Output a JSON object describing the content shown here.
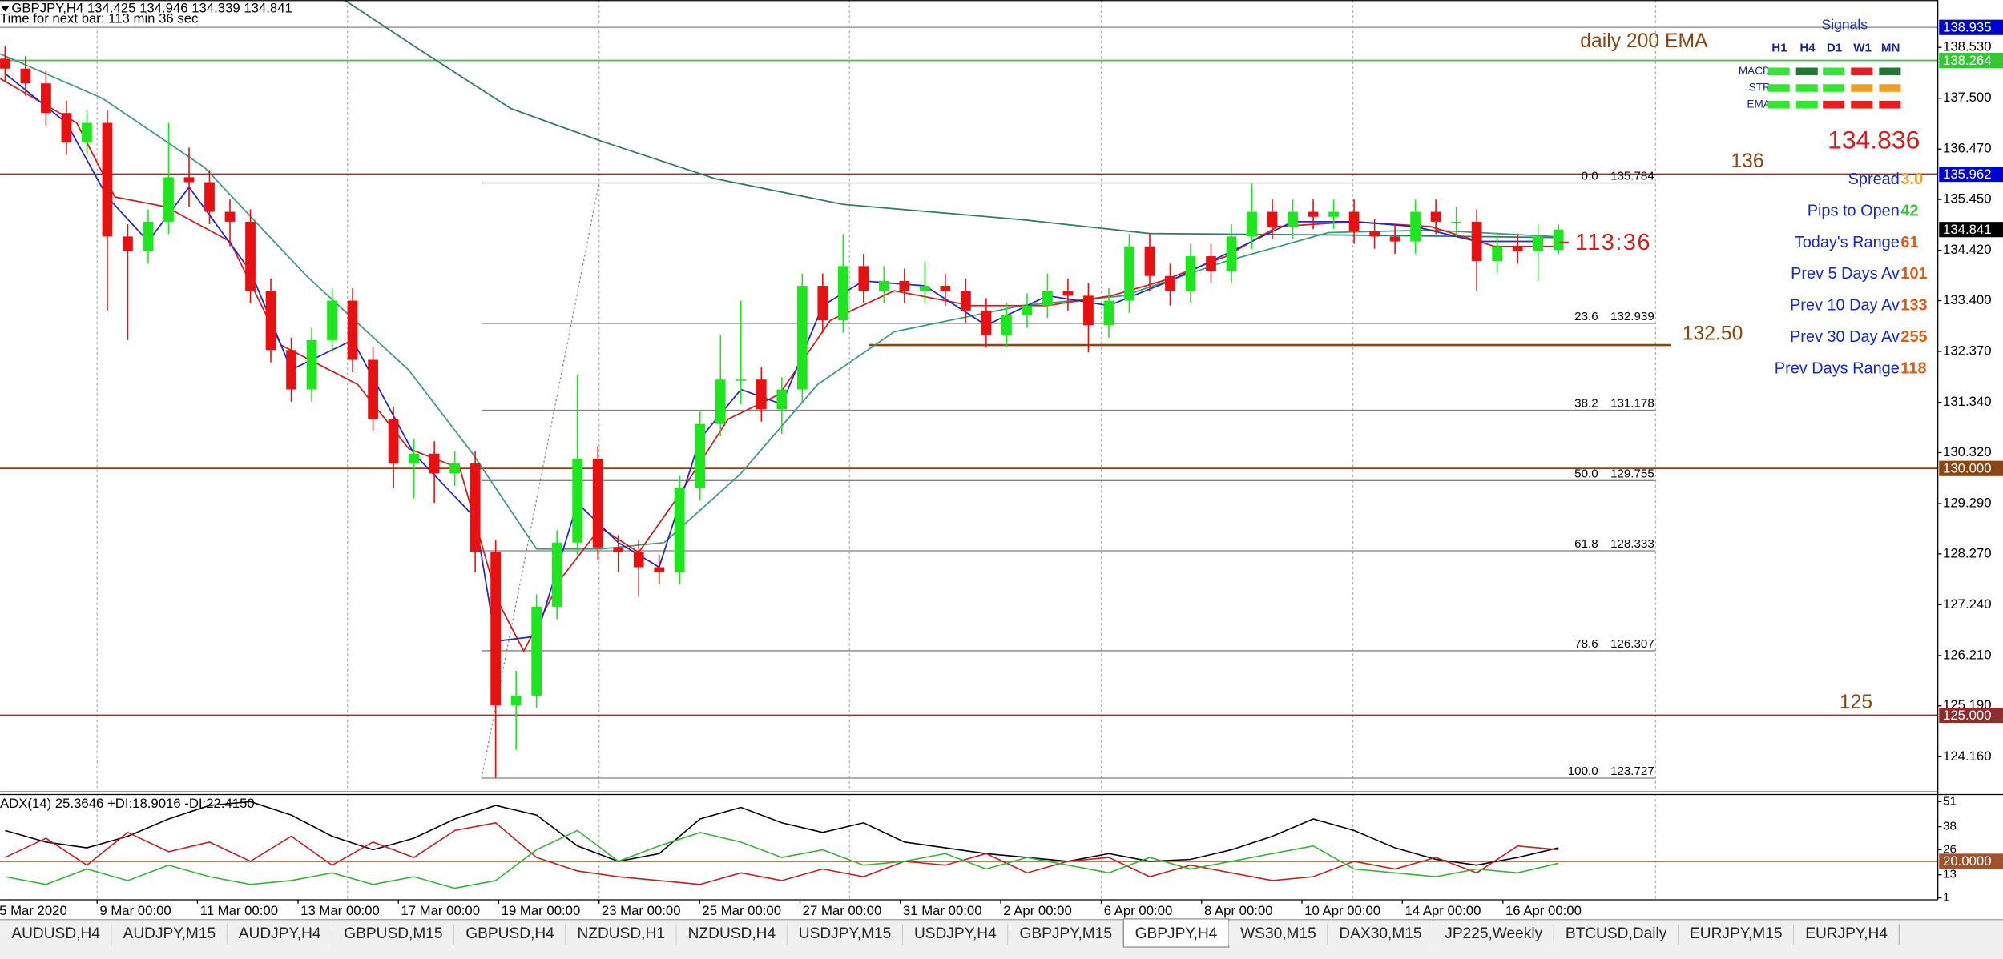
{
  "chart_data": {
    "type": "candlestick",
    "header": "GBPJPY,H4  134.425 134.946 134.339 134.841",
    "timer_text": "Time for next bar: 113 min 36 sec",
    "up_color": "#1ee61e",
    "down_color": "#e81010",
    "categories": [
      null,
      null,
      null,
      null,
      null,
      null,
      null,
      null,
      null,
      null,
      null,
      null,
      null,
      null,
      null,
      null,
      null,
      null,
      null,
      null,
      null,
      null,
      null,
      null,
      null,
      null,
      null,
      null,
      null,
      null,
      null,
      null,
      null,
      null,
      null,
      null,
      null,
      null,
      null,
      null,
      null,
      null,
      null,
      null,
      null,
      null,
      null,
      null,
      null,
      null,
      null,
      null,
      null,
      null,
      null,
      null,
      null,
      null,
      null,
      null,
      null,
      null,
      null,
      null,
      null,
      null,
      null,
      null,
      null,
      null,
      null,
      null,
      null,
      null,
      null,
      null,
      null
    ],
    "open": [
      138.3,
      138.1,
      137.8,
      137.2,
      136.6,
      137.0,
      134.7,
      134.4,
      135.0,
      135.9,
      135.8,
      135.2,
      135.0,
      133.6,
      132.4,
      131.6,
      132.6,
      133.4,
      132.2,
      131.0,
      130.1,
      130.3,
      129.9,
      130.1,
      128.3,
      125.2,
      125.4,
      127.2,
      128.5,
      130.2,
      128.4,
      128.3,
      128.0,
      127.9,
      129.6,
      130.9,
      131.8,
      131.8,
      131.2,
      131.6,
      133.7,
      133.0,
      134.1,
      133.6,
      133.8,
      133.6,
      133.7,
      133.6,
      133.2,
      132.7,
      133.1,
      133.3,
      133.6,
      133.5,
      132.9,
      133.4,
      134.5,
      133.9,
      133.6,
      134.3,
      134.0,
      134.7,
      135.2,
      134.9,
      135.2,
      135.1,
      135.2,
      134.8,
      134.7,
      134.6,
      135.2,
      135.0,
      135.0,
      134.2,
      134.5,
      134.4,
      134.425
    ],
    "high": [
      138.55,
      138.35,
      138.05,
      137.45,
      137.25,
      137.25,
      134.95,
      135.25,
      137.0,
      136.5,
      136.05,
      135.45,
      135.25,
      133.85,
      132.65,
      132.85,
      133.65,
      133.65,
      132.45,
      131.25,
      130.6,
      130.55,
      130.35,
      130.35,
      128.55,
      125.9,
      127.45,
      128.75,
      131.9,
      130.45,
      128.65,
      128.55,
      128.25,
      129.85,
      131.15,
      132.7,
      133.4,
      132.05,
      131.85,
      133.95,
      133.95,
      134.75,
      134.35,
      134.1,
      134.05,
      134.2,
      133.95,
      133.85,
      133.45,
      133.35,
      133.55,
      133.95,
      133.85,
      133.75,
      133.65,
      134.75,
      134.75,
      134.15,
      134.55,
      134.55,
      134.95,
      135.78,
      135.45,
      135.45,
      135.45,
      135.45,
      135.45,
      135.05,
      134.95,
      135.45,
      135.45,
      135.3,
      135.25,
      134.75,
      134.75,
      134.95,
      134.946
    ],
    "low": [
      137.85,
      137.55,
      136.95,
      136.35,
      136.35,
      133.2,
      132.6,
      134.15,
      134.75,
      135.3,
      134.95,
      134.5,
      133.35,
      132.15,
      131.35,
      131.35,
      132.35,
      131.95,
      130.75,
      129.6,
      129.4,
      129.3,
      129.65,
      127.9,
      123.73,
      124.3,
      125.15,
      126.95,
      128.25,
      128.15,
      127.9,
      127.4,
      127.65,
      127.65,
      129.35,
      130.65,
      131.3,
      130.95,
      130.7,
      131.35,
      132.75,
      132.75,
      133.35,
      133.35,
      133.35,
      133.35,
      133.3,
      132.95,
      132.45,
      132.45,
      132.85,
      133.05,
      133.2,
      132.35,
      132.65,
      133.15,
      133.6,
      133.3,
      133.35,
      133.75,
      133.75,
      134.45,
      134.65,
      134.65,
      134.85,
      134.85,
      134.55,
      134.45,
      134.35,
      134.35,
      134.75,
      134.7,
      133.6,
      133.95,
      134.15,
      133.8,
      134.339
    ],
    "close": [
      138.1,
      137.8,
      137.2,
      136.6,
      137.0,
      134.7,
      134.4,
      135.0,
      135.9,
      135.8,
      135.2,
      135.0,
      133.6,
      132.4,
      131.6,
      132.6,
      133.4,
      132.2,
      131.0,
      130.1,
      130.3,
      129.9,
      130.1,
      128.3,
      125.2,
      125.4,
      127.2,
      128.5,
      130.2,
      128.4,
      128.3,
      128.0,
      127.9,
      129.6,
      130.9,
      131.8,
      131.8,
      131.2,
      131.6,
      133.7,
      133.0,
      134.1,
      133.6,
      133.8,
      133.6,
      133.7,
      133.6,
      133.2,
      132.7,
      133.1,
      133.3,
      133.6,
      133.5,
      132.9,
      133.4,
      134.5,
      133.9,
      133.6,
      134.3,
      134.0,
      134.7,
      135.2,
      134.9,
      135.2,
      135.1,
      135.2,
      134.8,
      134.7,
      134.6,
      135.2,
      135.0,
      135.0,
      134.2,
      134.5,
      134.4,
      134.7,
      134.841
    ],
    "xlim": [
      -0.25,
      94.56
    ],
    "xticks": [
      {
        "value": -0.41,
        "label": "5 Mar 2020"
      },
      {
        "value": 4.5,
        "label": "9 Mar 00:00"
      },
      {
        "value": 9.41,
        "label": "11 Mar 00:00"
      },
      {
        "value": 14.33,
        "label": "13 Mar 00:00"
      },
      {
        "value": 19.24,
        "label": "17 Mar 00:00"
      },
      {
        "value": 24.15,
        "label": "19 Mar 00:00"
      },
      {
        "value": 29.06,
        "label": "23 Mar 00:00"
      },
      {
        "value": 33.98,
        "label": "25 Mar 00:00"
      },
      {
        "value": 38.89,
        "label": "27 Mar 00:00"
      },
      {
        "value": 43.8,
        "label": "31 Mar 00:00"
      },
      {
        "value": 48.71,
        "label": "2 Apr 00:00"
      },
      {
        "value": 53.63,
        "label": "6 Apr 00:00"
      },
      {
        "value": 58.54,
        "label": "8 Apr 00:00"
      },
      {
        "value": 63.45,
        "label": "10 Apr 00:00"
      },
      {
        "value": 68.36,
        "label": "14 Apr 00:00"
      },
      {
        "value": 73.28,
        "label": "16 Apr 00:00"
      }
    ],
    "vgrid": [
      4.5,
      16.75,
      29.06,
      41.31,
      53.63,
      65.94,
      80.75
    ],
    "ylim": [
      123.46,
      139.49
    ],
    "yticks": [
      {
        "value": 138.53,
        "label": "138.530"
      },
      {
        "value": 137.5,
        "label": "137.500"
      },
      {
        "value": 136.47,
        "label": "136.470"
      },
      {
        "value": 135.45,
        "label": "135.450"
      },
      {
        "value": 134.42,
        "label": "134.420"
      },
      {
        "value": 133.4,
        "label": "133.400"
      },
      {
        "value": 132.37,
        "label": "132.370"
      },
      {
        "value": 131.34,
        "label": "131.340"
      },
      {
        "value": 130.32,
        "label": "130.320"
      },
      {
        "value": 129.29,
        "label": "129.290"
      },
      {
        "value": 128.27,
        "label": "128.270"
      },
      {
        "value": 127.24,
        "label": "127.240"
      },
      {
        "value": 126.21,
        "label": "126.210"
      },
      {
        "value": 125.19,
        "label": "125.190"
      },
      {
        "value": 124.16,
        "label": "124.160"
      }
    ],
    "levels": [
      {
        "value": 138.935,
        "color": "#a8a8a8"
      },
      {
        "value": 138.264,
        "color": "#46c846"
      },
      {
        "value": 135.962,
        "color": "#8b2e2e"
      },
      {
        "value": 130,
        "color": "#8b4513"
      },
      {
        "value": 125,
        "color": "#a0282e"
      },
      {
        "value": 132.5,
        "color": "#8b4513",
        "from": 42.25,
        "to": 81.5
      }
    ],
    "price_tags": [
      {
        "value": 138.935,
        "label": "138.935",
        "color": "#0000d0"
      },
      {
        "value": 138.264,
        "label": "138.264",
        "color": "#32c832"
      },
      {
        "value": 135.962,
        "label": "135.962",
        "color": "#0000d0"
      },
      {
        "value": 134.841,
        "label": "134.841",
        "color": "#000000"
      },
      {
        "value": 130,
        "label": "130.000",
        "color": "#8b4513"
      },
      {
        "value": 125,
        "label": "125.000",
        "color": "#8b2e2e"
      }
    ],
    "moving_averages": [
      {
        "color": "#2f7a68",
        "x": [
          16.6,
          20.4,
          24.75,
          29.1,
          34.75,
          41,
          49.75,
          56,
          65.4,
          75.75
        ],
        "values": [
          139.49,
          138.45,
          137.29,
          136.64,
          135.87,
          135.35,
          135.04,
          134.76,
          134.73,
          134.68
        ]
      },
      {
        "color": "#3a9a7a",
        "x": [
          -0.25,
          4.75,
          9.75,
          14.75,
          19.75,
          22.875,
          26,
          29.125,
          32.25,
          36,
          39.75,
          43.5,
          49.75,
          54.75,
          59.75,
          64.75,
          69.75,
          75.75
        ],
        "values": [
          138.4,
          137.5,
          136.1,
          133.9,
          131.99,
          130.3,
          128.37,
          128.37,
          128.5,
          129.9,
          131.7,
          132.77,
          133.3,
          133.5,
          134.2,
          134.78,
          134.83,
          134.7
        ]
      },
      {
        "color": "#d01e1e",
        "x": [
          -0.25,
          3.5,
          5.375,
          7.875,
          11,
          13.5,
          17.25,
          19.75,
          22.25,
          24.125,
          25.375,
          27.25,
          29.125,
          31,
          32.875,
          35.375,
          37.875,
          40.375,
          43.5,
          47.25,
          51,
          54.125,
          56.625,
          59.75,
          62.25,
          66,
          69.75,
          72.875,
          75.75
        ],
        "values": [
          137.9,
          137.0,
          135.5,
          135.3,
          134.6,
          132.5,
          131.7,
          130.4,
          130.0,
          127.3,
          126.3,
          127.8,
          128.8,
          128.3,
          129.4,
          131.0,
          131.5,
          133.0,
          133.6,
          133.3,
          133.3,
          133.5,
          133.8,
          134.3,
          134.9,
          135.0,
          134.9,
          134.5,
          134.5
        ]
      },
      {
        "color": "#1e28c8",
        "x": [
          0,
          3,
          5,
          7,
          9,
          12,
          14,
          17,
          20,
          23,
          24,
          26,
          28,
          30,
          32,
          34,
          36,
          38,
          40,
          42,
          45,
          48,
          51,
          54,
          57,
          60,
          63,
          66,
          69,
          72,
          75
        ],
        "values": [
          138.0,
          137.0,
          135.5,
          134.6,
          135.7,
          134.0,
          132.0,
          132.6,
          130.3,
          129.0,
          126.5,
          126.6,
          129.3,
          128.5,
          128.0,
          130.6,
          131.6,
          131.3,
          133.3,
          133.8,
          133.7,
          132.9,
          133.5,
          133.3,
          133.8,
          134.4,
          135.0,
          135.0,
          134.9,
          134.6,
          134.6
        ]
      }
    ],
    "fib": {
      "color": "#808080",
      "x_from": 23.31,
      "x_high": 29.06,
      "x_to": 80.75,
      "ratios": [
        "0.0",
        "23.6",
        "38.2",
        "50.0",
        "61.8",
        "78.6",
        "100.0"
      ],
      "values": [
        135.784,
        132.939,
        131.178,
        129.755,
        128.333,
        126.307,
        123.727
      ]
    },
    "annotations": [
      "daily 200 EMA",
      136,
      {
        "value": 132.5,
        "label": "132.50"
      },
      125
    ],
    "annotation_color": "#8b4513",
    "info": {
      "price": 134.836,
      "countdown": "113:36",
      "color": "#d21e1e",
      "label_color": "#1428c8",
      "rows": [
        {
          "label": "Spread",
          "value": "3.0",
          "color": "#f0a020"
        },
        {
          "label": "Pips to Open",
          "value": 42,
          "color": "#32c832"
        },
        {
          "label": "Today's Range",
          "value": 61,
          "color": "#e05a14"
        },
        {
          "label": "Prev 5 Days Av",
          "value": 101,
          "color": "#e05a14"
        },
        {
          "label": "Prev 10 Day Av",
          "value": 133,
          "color": "#e05a14"
        },
        {
          "label": "Prev 30 Day Av",
          "value": 255,
          "color": "#e05a14"
        },
        {
          "label": "Prev Days Range",
          "value": 118,
          "color": "#e05a14"
        }
      ]
    },
    "signals": {
      "title": "Signals",
      "columns": [
        "H1",
        "H4",
        "D1",
        "W1",
        "MN"
      ],
      "rows": [
        {
          "label": "MACD",
          "colors": [
            "#32e632",
            "#1e7a32",
            "#32e632",
            "#e61e1e",
            "#1e7a32"
          ]
        },
        {
          "label": "STR",
          "colors": [
            "#32e632",
            "#32e632",
            "#32e632",
            "#f0a020",
            "#f0a020"
          ]
        },
        {
          "label": "EMA",
          "colors": [
            "#32e632",
            "#32e632",
            "#e61e1e",
            "#e61e1e",
            "#e61e1e"
          ]
        }
      ]
    },
    "adx": {
      "title": "ADX(14) 25.3646 +DI:18.9016 -DI:22.4150",
      "ylim": [
        0,
        55
      ],
      "yticks": [
        51,
        38,
        26,
        13,
        1
      ],
      "level": {
        "value": 20,
        "label": "20.0000",
        "color": "#a0522d"
      },
      "x": [
        0,
        2,
        4,
        6,
        8,
        10,
        12,
        14,
        16,
        18,
        20,
        22,
        24,
        26,
        28,
        30,
        32,
        34,
        36,
        38,
        40,
        42,
        44,
        46,
        48,
        50,
        52,
        54,
        56,
        58,
        60,
        62,
        64,
        66,
        68,
        70,
        72,
        74,
        76
      ],
      "series": [
        {
          "color": "#000000",
          "values": [
            36,
            30,
            27,
            33,
            42,
            49,
            51,
            44,
            33,
            26,
            32,
            42,
            49,
            44,
            28,
            20,
            24,
            42,
            48,
            40,
            35,
            40,
            30,
            27,
            24,
            22,
            20,
            24,
            20,
            21,
            26,
            33,
            42,
            36,
            27,
            21,
            18,
            22,
            27
          ]
        },
        {
          "color": "#c81e1e",
          "values": [
            22,
            32,
            18,
            35,
            25,
            30,
            20,
            33,
            18,
            30,
            22,
            36,
            40,
            22,
            15,
            12,
            10,
            8,
            14,
            10,
            16,
            12,
            20,
            18,
            24,
            14,
            20,
            22,
            12,
            18,
            14,
            10,
            12,
            20,
            16,
            22,
            14,
            28,
            26
          ]
        },
        {
          "color": "#32b432",
          "values": [
            12,
            8,
            16,
            10,
            18,
            12,
            8,
            10,
            14,
            8,
            12,
            6,
            10,
            26,
            36,
            20,
            28,
            35,
            30,
            22,
            26,
            18,
            20,
            24,
            16,
            22,
            18,
            14,
            22,
            16,
            20,
            24,
            28,
            16,
            14,
            12,
            16,
            14,
            19
          ]
        }
      ]
    }
  },
  "tabs": {
    "items": [
      "AUDUSD,H4",
      "AUDJPY,M15",
      "AUDJPY,H4",
      "GBPUSD,M15",
      "GBPUSD,H4",
      "NZDUSD,H1",
      "NZDUSD,H4",
      "USDJPY,M15",
      "USDJPY,H4",
      "GBPJPY,M15",
      "GBPJPY,H4",
      "WS30,M15",
      "DAX30,M15",
      "JP225,Weekly",
      "BTCUSD,Daily",
      "EURJPY,M15",
      "EURJPY,H4"
    ],
    "active": 10
  }
}
